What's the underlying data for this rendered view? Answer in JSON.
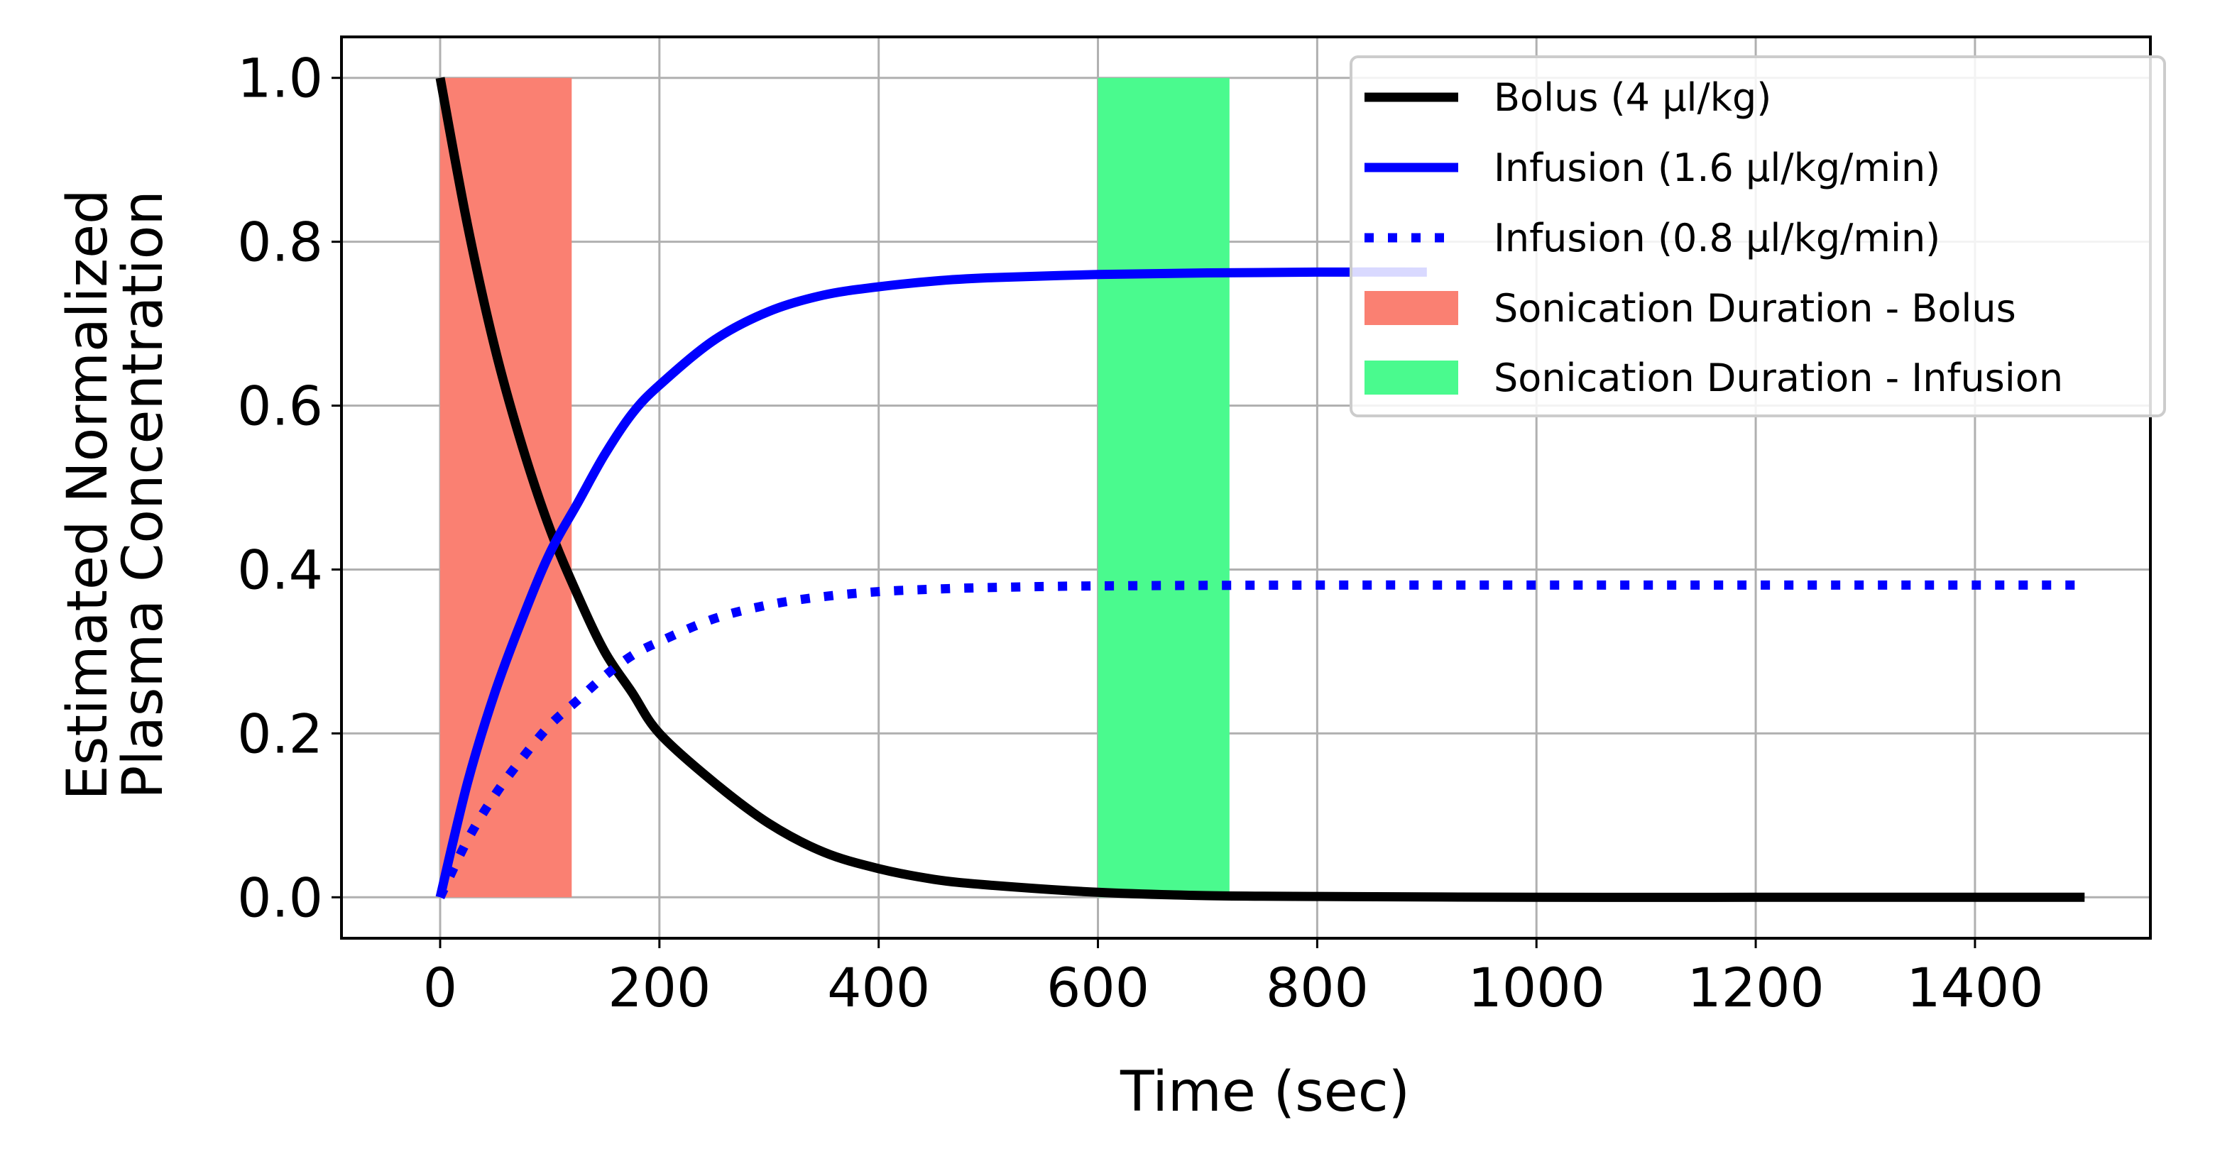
{
  "chart_data": {
    "type": "line",
    "title": "",
    "xlabel": "Time (sec)",
    "ylabel_lines": [
      "Estimated Normalized",
      "Plasma Concentration"
    ],
    "xlim": [
      -90,
      1560
    ],
    "ylim": [
      -0.05,
      1.05
    ],
    "xticks": [
      0,
      200,
      400,
      600,
      800,
      1000,
      1200,
      1400
    ],
    "yticks": [
      0.0,
      0.2,
      0.4,
      0.6,
      0.8,
      1.0
    ],
    "xtick_labels": [
      "0",
      "200",
      "400",
      "600",
      "800",
      "1000",
      "1200",
      "1400"
    ],
    "ytick_labels": [
      "0.0",
      "0.2",
      "0.4",
      "0.6",
      "0.8",
      "1.0"
    ],
    "grid": true,
    "legend_position": "top-right",
    "series": [
      {
        "name": "Bolus (4 µl/kg)",
        "style": "solid",
        "color": "#000000",
        "x": [
          0,
          25,
          50,
          75,
          100,
          125,
          150,
          175,
          200,
          250,
          300,
          350,
          400,
          450,
          500,
          600,
          700,
          800,
          1000,
          1200,
          1500
        ],
        "y": [
          1.0,
          0.82,
          0.67,
          0.55,
          0.45,
          0.37,
          0.3,
          0.25,
          0.2,
          0.14,
          0.09,
          0.055,
          0.035,
          0.022,
          0.015,
          0.006,
          0.002,
          0.001,
          0.0,
          0.0,
          0.0
        ]
      },
      {
        "name": "Infusion (1.6 µl/kg/min)",
        "style": "solid",
        "color": "#0000ff",
        "x": [
          0,
          25,
          50,
          75,
          100,
          125,
          150,
          175,
          200,
          250,
          300,
          350,
          400,
          450,
          500,
          600,
          700,
          800,
          900
        ],
        "y": [
          0.0,
          0.14,
          0.25,
          0.34,
          0.42,
          0.48,
          0.54,
          0.59,
          0.625,
          0.68,
          0.715,
          0.735,
          0.745,
          0.752,
          0.756,
          0.76,
          0.762,
          0.763,
          0.763
        ]
      },
      {
        "name": "Infusion (0.8 µl/kg/min)",
        "style": "dotted",
        "color": "#0000ff",
        "x": [
          0,
          25,
          50,
          75,
          100,
          125,
          150,
          175,
          200,
          250,
          300,
          350,
          400,
          450,
          500,
          600,
          800,
          1000,
          1200,
          1500
        ],
        "y": [
          0.0,
          0.07,
          0.125,
          0.17,
          0.21,
          0.24,
          0.27,
          0.295,
          0.312,
          0.34,
          0.357,
          0.367,
          0.373,
          0.376,
          0.378,
          0.38,
          0.381,
          0.381,
          0.381,
          0.381
        ]
      }
    ],
    "spans": [
      {
        "name": "Sonication Duration - Bolus",
        "x_start": 0,
        "x_end": 120,
        "y_start": 0,
        "y_end": 1.0,
        "color": "#fa8072"
      },
      {
        "name": "Sonication Duration - Infusion",
        "x_start": 600,
        "x_end": 720,
        "y_start": 0,
        "y_end": 1.0,
        "color": "#4afa8e"
      }
    ]
  }
}
